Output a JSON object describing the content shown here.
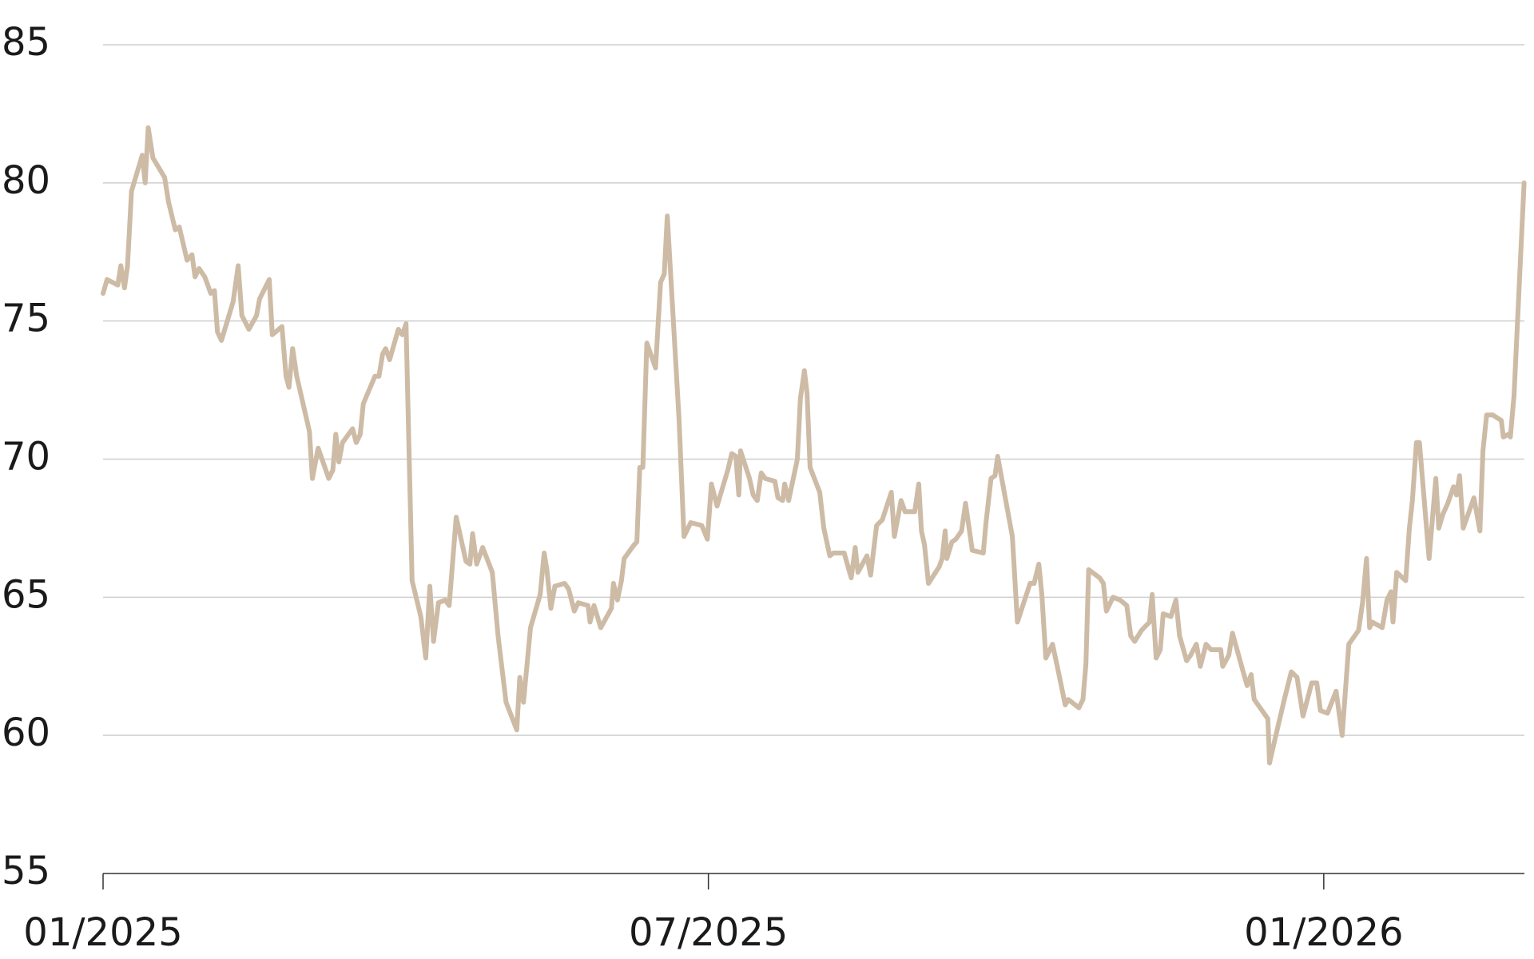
{
  "chart_data": {
    "type": "line",
    "color": "#cdbba6",
    "grid": true,
    "xlim": [
      0,
      425
    ],
    "ylim": [
      55,
      85
    ],
    "xticks": [
      {
        "value": 0,
        "label": "01/2025"
      },
      {
        "value": 181,
        "label": "07/2025"
      },
      {
        "value": 365,
        "label": "01/2026"
      }
    ],
    "yticks": [
      55,
      60,
      65,
      70,
      75,
      80,
      85
    ],
    "x": [
      0,
      1.2,
      4.4,
      5.3,
      6.4,
      7.3,
      8.5,
      11.7,
      12.6,
      13.5,
      14.9,
      18.4,
      19.6,
      21.6,
      22.8,
      25.1,
      26.6,
      27.5,
      28.7,
      30.4,
      32.2,
      33.3,
      34.2,
      35.4,
      38.9,
      40.4,
      41.5,
      43.6,
      45.9,
      46.8,
      49.7,
      50.6,
      53.5,
      54.7,
      55.6,
      56.7,
      57.9,
      61.7,
      62.6,
      64.3,
      67.5,
      68.7,
      69.6,
      70.5,
      71.6,
      74.6,
      75.7,
      76.9,
      77.8,
      79.2,
      81.3,
      82.5,
      83.6,
      84.5,
      85.7,
      88.3,
      89.5,
      90.6,
      92.4,
      95.0,
      96.5,
      97.7,
      98.8,
      100.3,
      102.3,
      103.5,
      105.6,
      108.5,
      109.7,
      110.5,
      111.7,
      113.5,
      116.4,
      118.1,
      120.5,
      123.7,
      124.6,
      125.7,
      127.8,
      130.7,
      131.9,
      132.7,
      133.9,
      135.1,
      138.0,
      139.2,
      140.9,
      142.1,
      145.0,
      145.6,
      146.8,
      148.8,
      152.0,
      152.6,
      153.8,
      155.0,
      155.8,
      158.8,
      159.6,
      160.5,
      161.4,
      162.6,
      165.2,
      166.7,
      167.8,
      168.7,
      172.2,
      173.7,
      175.7,
      179.0,
      180.7,
      181.9,
      183.6,
      186.8,
      188.0,
      189.2,
      190.1,
      190.6,
      193.3,
      194.4,
      195.6,
      196.8,
      198.0,
      200.9,
      201.8,
      203.2,
      203.8,
      205.0,
      207.6,
      208.5,
      209.7,
      210.5,
      211.4,
      214.3,
      215.5,
      217.3,
      218.4,
      221.6,
      223.7,
      224.9,
      225.7,
      228.4,
      229.5,
      231.3,
      233.0,
      235.7,
      236.6,
      238.6,
      239.8,
      242.7,
      243.9,
      244.7,
      245.6,
      246.8,
      250.0,
      250.9,
      251.8,
      252.3,
      253.8,
      255.0,
      256.7,
      257.9,
      259.9,
      263.2,
      264.0,
      265.5,
      266.7,
      267.5,
      271.9,
      273.4,
      277.2,
      278.4,
      279.8,
      280.7,
      281.9,
      283.9,
      286.0,
      287.7,
      288.6,
      291.8,
      293.0,
      293.9,
      294.7,
      298.0,
      299.1,
      300.0,
      302.0,
      304.1,
      306.1,
      307.3,
      308.5,
      310.5,
      312.9,
      313.7,
      314.9,
      316.1,
      317.0,
      319.3,
      320.8,
      321.9,
      324.0,
      325.2,
      326.9,
      328.1,
      329.8,
      331.3,
      334.2,
      334.8,
      336.6,
      337.7,
      340.9,
      342.1,
      343.3,
      344.2,
      348.3,
      348.8,
      350.3,
      353.2,
      355.3,
      357.0,
      358.8,
      361.4,
      362.9,
      364.0,
      366.1,
      368.7,
      370.5,
      372.5,
      375.4,
      376.6,
      377.8,
      378.7,
      379.5,
      382.5,
      383.9,
      385.1,
      385.7,
      386.8,
      389.5,
      390.6,
      391.5,
      392.7,
      393.6,
      396.5,
      398.5,
      399.4,
      400.6,
      402.1,
      403.8,
      404.7,
      405.6,
      406.7,
      409.9,
      411.7,
      412.6,
      413.7,
      415.5,
      418.1,
      418.7,
      420.2,
      420.8,
      421.9,
      424.9
    ],
    "values": [
      76,
      76.5,
      76.3,
      77,
      76.2,
      77,
      79.7,
      81,
      80,
      82,
      80.9,
      80.2,
      79.3,
      78.3,
      78.4,
      77.2,
      77.4,
      76.6,
      76.9,
      76.6,
      76,
      76.1,
      74.6,
      74.3,
      75.7,
      77,
      75.2,
      74.7,
      75.2,
      75.8,
      76.5,
      74.5,
      74.8,
      73,
      72.6,
      74,
      73,
      71,
      69.3,
      70.4,
      69.3,
      69.6,
      70.9,
      69.9,
      70.6,
      71.1,
      70.6,
      70.9,
      72,
      72.4,
      73,
      73,
      73.8,
      74,
      73.6,
      74.7,
      74.5,
      74.9,
      65.6,
      64.3,
      62.8,
      65.4,
      63.4,
      64.8,
      64.9,
      64.7,
      67.9,
      66.3,
      66.2,
      67.3,
      66.2,
      66.8,
      65.9,
      63.6,
      61.2,
      60.2,
      62.1,
      61.2,
      63.9,
      65.1,
      66.6,
      66,
      64.6,
      65.4,
      65.5,
      65.3,
      64.5,
      64.8,
      64.7,
      64.1,
      64.7,
      63.9,
      64.6,
      65.5,
      64.9,
      65.6,
      66.4,
      66.9,
      67,
      69.7,
      69.7,
      74.2,
      73.3,
      76.4,
      76.7,
      78.8,
      71.5,
      67.2,
      67.7,
      67.6,
      67.1,
      69.1,
      68.3,
      69.6,
      70.2,
      70.1,
      68.7,
      70.3,
      69.3,
      68.7,
      68.5,
      69.5,
      69.3,
      69.2,
      68.6,
      68.5,
      69.1,
      68.5,
      70,
      72.2,
      73.2,
      72.4,
      69.7,
      68.8,
      67.5,
      66.5,
      66.6,
      66.6,
      65.7,
      66.8,
      65.9,
      66.5,
      65.8,
      67.6,
      67.8,
      68.8,
      67.2,
      68.5,
      68.1,
      68.1,
      69.1,
      67.4,
      66.9,
      65.5,
      66.1,
      66.4,
      67.4,
      66.4,
      67,
      67.1,
      67.4,
      68.4,
      66.7,
      66.6,
      67.7,
      69.3,
      69.4,
      70.1,
      67.2,
      64.1,
      65.5,
      65.5,
      66.2,
      65.1,
      62.8,
      63.3,
      62.1,
      61.1,
      61.3,
      61,
      61.3,
      62.6,
      66,
      65.7,
      65.5,
      64.5,
      65,
      64.9,
      64.7,
      63.6,
      63.4,
      63.8,
      64.1,
      65.1,
      62.8,
      63.1,
      64.4,
      64.3,
      64.9,
      63.6,
      62.7,
      62.9,
      63.3,
      62.5,
      63.3,
      63.1,
      63.1,
      62.5,
      62.9,
      63.7,
      62.3,
      61.8,
      62.2,
      61.3,
      60.6,
      59,
      59.8,
      61.3,
      62.3,
      62.1,
      60.7,
      61.9,
      61.9,
      60.9,
      60.8,
      61.6,
      60,
      63.3,
      63.8,
      64.8,
      66.4,
      63.9,
      64.1,
      63.9,
      64.9,
      65.2,
      64.1,
      65.9,
      65.6,
      67.5,
      68.5,
      70.6,
      70.6,
      66.4,
      69.3,
      67.5,
      68,
      68.4,
      69,
      68.7,
      69.4,
      67.5,
      68.6,
      67.4,
      70.3,
      71.6,
      71.6,
      71.4,
      70.8,
      70.9,
      70.8,
      72.3,
      80
    ]
  }
}
